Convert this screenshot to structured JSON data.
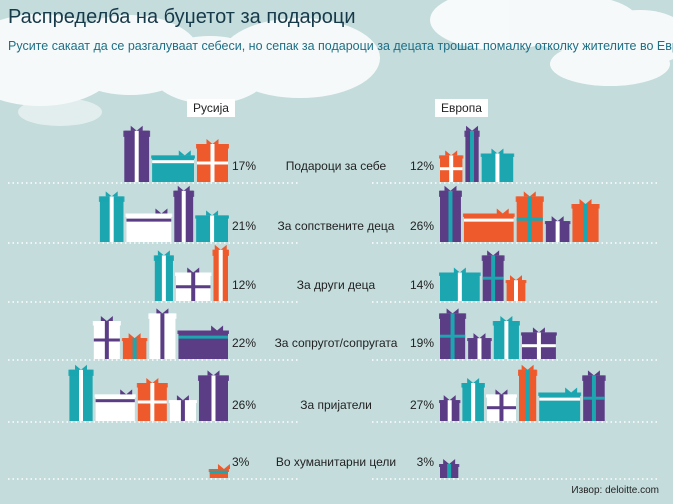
{
  "title": "Распределба на буџетот за подароци",
  "subtitle": "Русите сакаат да се разгалуваат себеси, но сепак за подароци за децата трошат помалку отколку жителите во Европа.",
  "source": "Извор: deloitte.com",
  "colors": {
    "background": "#c4dcdc",
    "orange": "#ee5a2c",
    "teal": "#1ba6b0",
    "purple": "#5b3d86",
    "white": "#ffffff",
    "dotted_line": "#ffffff"
  },
  "chart_data": {
    "type": "bar",
    "categories": [
      "Подароци за себе",
      "За сопствените деца",
      "За други деца",
      "За сопругот/сопругата",
      "За пријатели",
      "Во хуманитарни цели"
    ],
    "series": [
      {
        "name": "Русија",
        "values": [
          17,
          21,
          12,
          22,
          26,
          3
        ],
        "unit": "%"
      },
      {
        "name": "Европа",
        "values": [
          12,
          26,
          14,
          19,
          27,
          3
        ],
        "unit": "%"
      }
    ]
  },
  "gifts": {
    "russia": [
      [
        "orange",
        "teal",
        "purple"
      ],
      [
        "teal",
        "purple",
        "white",
        "teal"
      ],
      [
        "orange",
        "white",
        "teal"
      ],
      [
        "purple",
        "white",
        "orange",
        "white"
      ],
      [
        "purple",
        "white",
        "orange",
        "white",
        "teal"
      ],
      [
        "orange"
      ]
    ],
    "europe": [
      [
        "orange",
        "purple",
        "teal"
      ],
      [
        "purple",
        "orange",
        "orange",
        "purple",
        "orange"
      ],
      [
        "teal",
        "purple",
        "orange"
      ],
      [
        "purple",
        "purple",
        "teal",
        "purple"
      ],
      [
        "purple",
        "teal",
        "white",
        "orange",
        "teal",
        "purple"
      ],
      [
        "purple"
      ]
    ]
  }
}
